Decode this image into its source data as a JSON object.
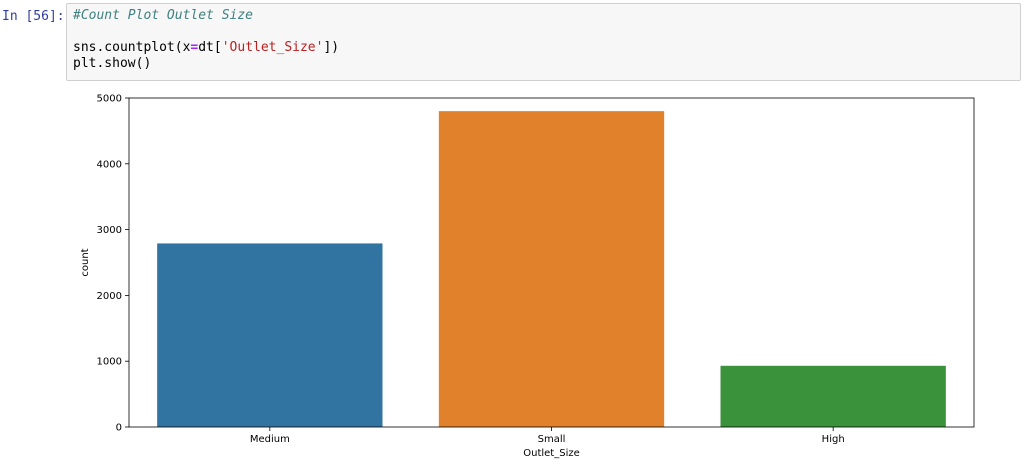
{
  "cell": {
    "prompt": "In [56]:",
    "comment": "#Count Plot Outlet Size",
    "line2_prefix": "sns.countplot(x",
    "line2_op": "=",
    "line2_mid": "dt[",
    "line2_str": "'Outlet_Size'",
    "line2_suffix": "])",
    "line3": "plt.show()"
  },
  "chart_data": {
    "type": "bar",
    "categories": [
      "Medium",
      "Small",
      "High"
    ],
    "values": [
      2790,
      4800,
      930
    ],
    "colors": [
      "#3274a1",
      "#e1812c",
      "#3a923a"
    ],
    "xlabel": "Outlet_Size",
    "ylabel": "count",
    "ylim": [
      0,
      5000
    ],
    "yticks": [
      0,
      1000,
      2000,
      3000,
      4000,
      5000
    ],
    "ytick_labels": [
      "0",
      "1000",
      "2000",
      "3000",
      "4000",
      "5000"
    ],
    "grid": false
  }
}
